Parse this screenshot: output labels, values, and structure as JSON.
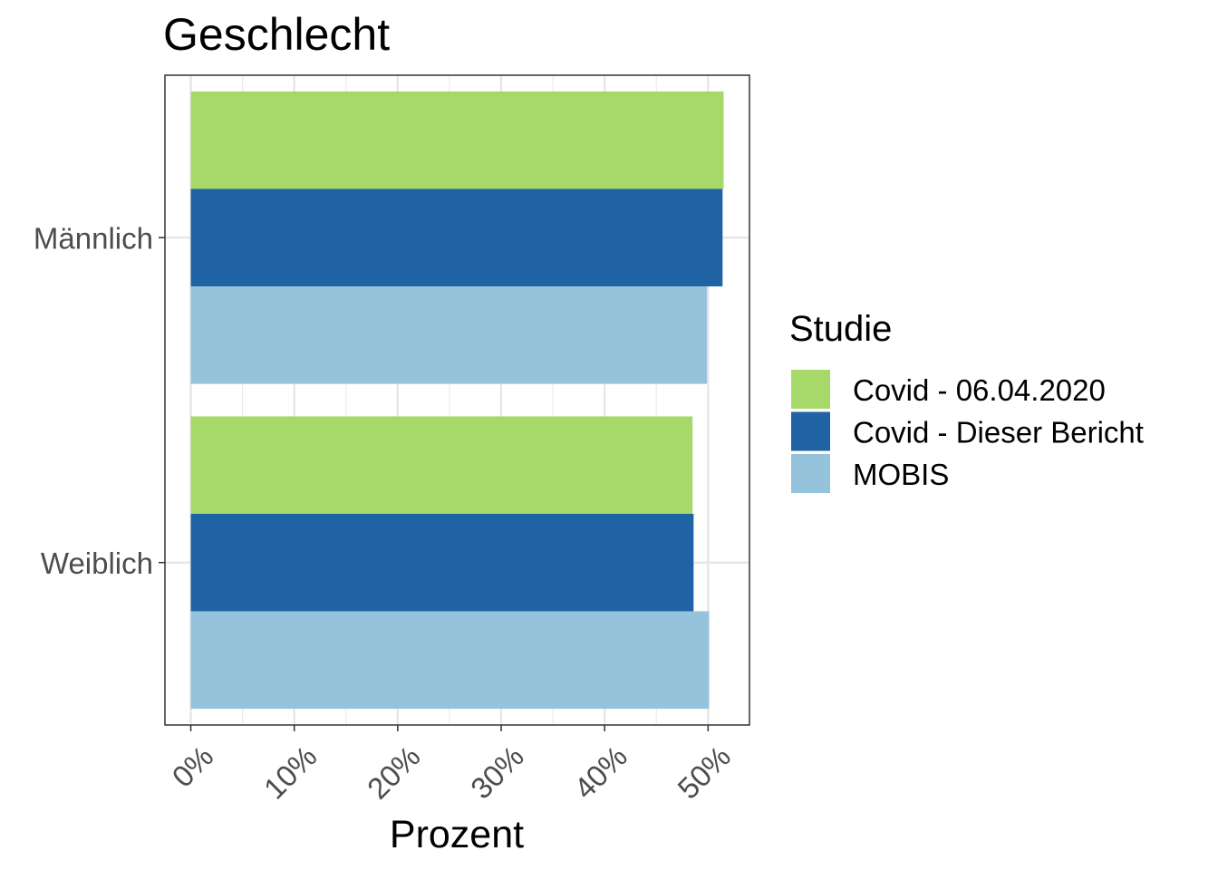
{
  "chart_data": {
    "type": "bar",
    "orientation": "horizontal",
    "title": "Geschlecht",
    "xlabel": "Prozent",
    "ylabel": "",
    "categories": [
      "Weiblich",
      "Männlich"
    ],
    "xlim": [
      -2.5,
      54
    ],
    "x_ticks": [
      0,
      10,
      20,
      30,
      40,
      50
    ],
    "x_tick_labels": [
      "0%",
      "10%",
      "20%",
      "30%",
      "40%",
      "50%"
    ],
    "x_tick_rotation": 45,
    "grid": true,
    "legend": {
      "title": "Studie",
      "position": "right"
    },
    "series": [
      {
        "name": "Covid - 06.04.2020",
        "color": "#a6d96a",
        "values": [
          48.5,
          51.5
        ]
      },
      {
        "name": "Covid - Dieser Bericht",
        "color": "#1f63a5",
        "values": [
          48.6,
          51.4
        ]
      },
      {
        "name": "MOBIS",
        "color": "#96c3dc",
        "values": [
          50.1,
          49.9
        ]
      }
    ]
  }
}
